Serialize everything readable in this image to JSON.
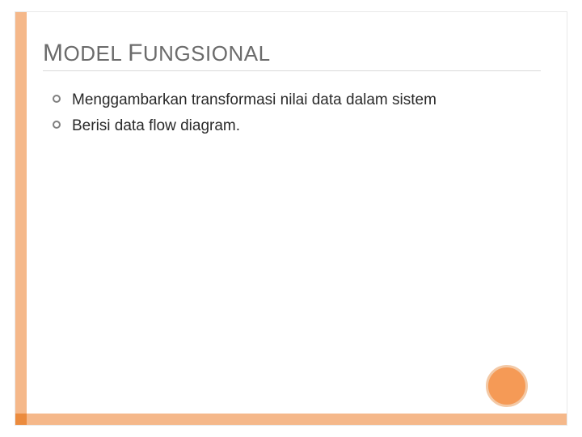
{
  "slide": {
    "title_parts": {
      "cap1": "M",
      "rest1": "ODEL ",
      "cap2": "F",
      "rest2": "UNGSIONAL"
    },
    "bullets": [
      {
        "text": "Menggambarkan transformasi nilai data dalam sistem"
      },
      {
        "text": "Berisi data flow diagram."
      }
    ],
    "colors": {
      "bar": "#f5b88a",
      "corner": "#eb8b3e",
      "circle_fill": "#f59a56",
      "circle_border": "#f3c9a6",
      "title_color": "#6b6b6b",
      "text_color": "#2a2a2a",
      "underline": "#d9d9d9"
    },
    "typography": {
      "title_fontsize": 26,
      "title_cap_fontsize": 30,
      "body_fontsize": 19
    }
  }
}
